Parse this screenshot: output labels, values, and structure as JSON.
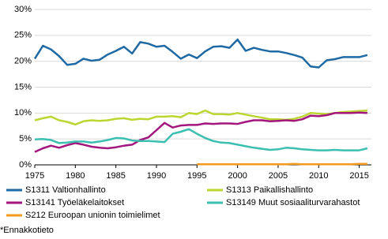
{
  "chart_data": {
    "type": "line",
    "x": [
      1975,
      1976,
      1977,
      1978,
      1979,
      1980,
      1981,
      1982,
      1983,
      1984,
      1985,
      1986,
      1987,
      1988,
      1989,
      1990,
      1991,
      1992,
      1993,
      1994,
      1995,
      1996,
      1997,
      1998,
      1999,
      2000,
      2001,
      2002,
      2003,
      2004,
      2005,
      2006,
      2007,
      2008,
      2009,
      2010,
      2011,
      2012,
      2013,
      2014,
      2015,
      2016
    ],
    "xlim": [
      1975,
      2016.5
    ],
    "xticks": [
      1975,
      1980,
      1985,
      1990,
      1995,
      2000,
      2005,
      2010,
      2015
    ],
    "ylim": [
      0,
      30
    ],
    "yticks": [
      {
        "value": 0,
        "label": "0%"
      },
      {
        "value": 5,
        "label": "5%"
      },
      {
        "value": 10,
        "label": "10%"
      },
      {
        "value": 15,
        "label": "15%"
      },
      {
        "value": 20,
        "label": "20%"
      },
      {
        "value": 25,
        "label": "25%"
      },
      {
        "value": 30,
        "label": "30%"
      }
    ],
    "grid": true,
    "legend": "bottom",
    "series": [
      {
        "name": "S1311 Valtionhallinto",
        "color": "#1f6aa5",
        "values": [
          20.5,
          23,
          22.3,
          21,
          19.3,
          19.5,
          20.5,
          20.1,
          20.3,
          21.3,
          22,
          22.8,
          21.5,
          23.7,
          23.4,
          22.8,
          23,
          21.8,
          20.5,
          21.3,
          20.6,
          21.9,
          22.8,
          22.9,
          22.6,
          24.2,
          22,
          22.6,
          22.2,
          21.9,
          21.9,
          21.6,
          21.2,
          20.7,
          19,
          18.8,
          20.2,
          20.4,
          20.8,
          20.8,
          20.8,
          21.2
        ]
      },
      {
        "name": "S1313 Paikallishallinto",
        "color": "#bcd631",
        "values": [
          8.6,
          9,
          9.3,
          8.6,
          8.3,
          7.8,
          8.4,
          8.6,
          8.5,
          8.6,
          8.9,
          9,
          8.7,
          8.9,
          8.8,
          9.3,
          9.3,
          9.4,
          9.2,
          10,
          9.8,
          10.5,
          9.8,
          9.8,
          9.7,
          10,
          9.7,
          9.4,
          9.1,
          8.8,
          8.8,
          8.7,
          8.9,
          9.3,
          10,
          9.9,
          9.8,
          10,
          10.2,
          10.3,
          10.4,
          10.5
        ]
      },
      {
        "name": "S13141 Työeläkelaitokset",
        "color": "#a3167d",
        "values": [
          2.5,
          3.2,
          3.7,
          3.3,
          3.8,
          4.2,
          3.9,
          3.5,
          3.3,
          3.2,
          3.4,
          3.7,
          3.9,
          4.8,
          5.3,
          6.7,
          8.1,
          7.2,
          7.6,
          7.7,
          7.7,
          8,
          7.9,
          8,
          8,
          7.9,
          8.3,
          8.6,
          8.6,
          8.4,
          8.5,
          8.6,
          8.5,
          8.8,
          9.5,
          9.4,
          9.6,
          10,
          10,
          10,
          10.1,
          10
        ]
      },
      {
        "name": "S13149 Muut sosiaaliturvarahastot",
        "color": "#3bbfb1",
        "values": [
          4.9,
          5,
          4.8,
          4.2,
          4.3,
          4.5,
          4.5,
          4.3,
          4.5,
          4.8,
          5.2,
          5.1,
          4.7,
          4.6,
          4.6,
          4.5,
          4.4,
          6,
          6.4,
          6.9,
          6,
          5.2,
          4.6,
          4.3,
          4.2,
          3.9,
          3.6,
          3.3,
          3.1,
          2.9,
          3,
          3.3,
          3.2,
          3,
          2.9,
          2.8,
          2.8,
          2.9,
          2.8,
          2.8,
          2.8,
          3.2
        ]
      },
      {
        "name": "S212 Euroopan unionin toimielimet",
        "color": "#f29a1e",
        "values": [
          null,
          null,
          null,
          null,
          null,
          null,
          null,
          null,
          null,
          null,
          null,
          null,
          null,
          null,
          null,
          null,
          null,
          null,
          null,
          null,
          0.1,
          0.1,
          0.1,
          0.1,
          0.1,
          0.1,
          0.1,
          0.1,
          0.1,
          0.1,
          0.1,
          0.1,
          0.2,
          0.1,
          0.1,
          0.1,
          0.1,
          0.1,
          0.1,
          0.1,
          0.2,
          0.2
        ]
      }
    ],
    "footnote": "*Ennakkotieto"
  }
}
